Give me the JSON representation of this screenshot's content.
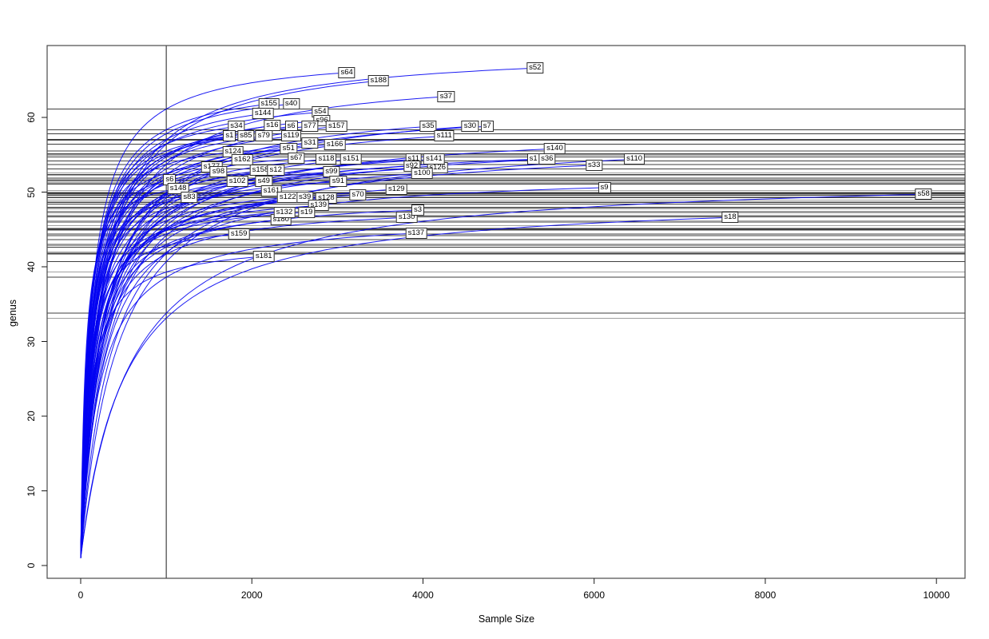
{
  "chart_data": {
    "type": "line",
    "title": "",
    "xlabel": "Sample Size",
    "ylabel": "genus",
    "xlim": [
      -380,
      10320
    ],
    "ylim": [
      -2,
      69.5
    ],
    "x_ticks": [
      0,
      2000,
      4000,
      6000,
      8000,
      10000
    ],
    "y_ticks": [
      0,
      10,
      20,
      30,
      40,
      50,
      60
    ],
    "grid": false,
    "legend": "none",
    "subsample_line_x": 1000,
    "description": "Rarefaction curves per sample; each blue curve ends at its sample label; horizontal lines mark rarefied genus richness at sample size 1000; vertical line at sample size 1000.",
    "colors": {
      "curve": "#0202f2",
      "hline": "#3f3f3f",
      "vline": "#1a1a1a",
      "box": "#4a4a4a",
      "tick": "#1a1a1a",
      "label_border": "#2b2b2b",
      "label_bg": "#ffffff"
    },
    "samples": [
      {
        "label": "s64",
        "x": 3110,
        "y": 66.0
      },
      {
        "label": "s188",
        "x": 3480,
        "y": 64.9
      },
      {
        "label": "s52",
        "x": 5310,
        "y": 66.6
      },
      {
        "label": "s37",
        "x": 4270,
        "y": 62.8
      },
      {
        "label": "s40",
        "x": 2460,
        "y": 61.8
      },
      {
        "label": "s155",
        "x": 2200,
        "y": 61.8
      },
      {
        "label": "s144",
        "x": 2130,
        "y": 60.5
      },
      {
        "label": "s54",
        "x": 2800,
        "y": 60.7
      },
      {
        "label": "s96",
        "x": 2820,
        "y": 59.6
      },
      {
        "label": "s34",
        "x": 1820,
        "y": 58.8
      },
      {
        "label": "s16",
        "x": 2240,
        "y": 58.9
      },
      {
        "label": "s6",
        "x": 2460,
        "y": 58.8
      },
      {
        "label": "s77",
        "x": 2680,
        "y": 58.8
      },
      {
        "label": "s157",
        "x": 2990,
        "y": 58.8
      },
      {
        "label": "s35",
        "x": 4060,
        "y": 58.8
      },
      {
        "label": "s7",
        "x": 4750,
        "y": 58.8
      },
      {
        "label": "s30",
        "x": 4550,
        "y": 58.8
      },
      {
        "label": "s1",
        "x": 1740,
        "y": 57.5
      },
      {
        "label": "s79",
        "x": 2140,
        "y": 57.5
      },
      {
        "label": "s85",
        "x": 1930,
        "y": 57.5
      },
      {
        "label": "s119",
        "x": 2460,
        "y": 57.5
      },
      {
        "label": "s111",
        "x": 4250,
        "y": 57.5
      },
      {
        "label": "s31",
        "x": 2680,
        "y": 56.6
      },
      {
        "label": "s166",
        "x": 2970,
        "y": 56.4
      },
      {
        "label": "s124",
        "x": 1780,
        "y": 55.4
      },
      {
        "label": "s51",
        "x": 2430,
        "y": 55.8
      },
      {
        "label": "s140",
        "x": 5540,
        "y": 55.8
      },
      {
        "label": "s162",
        "x": 1890,
        "y": 54.3
      },
      {
        "label": "s67",
        "x": 2520,
        "y": 54.5
      },
      {
        "label": "s118",
        "x": 2870,
        "y": 54.4
      },
      {
        "label": "s151",
        "x": 3160,
        "y": 54.4
      },
      {
        "label": "s11",
        "x": 3890,
        "y": 54.4
      },
      {
        "label": "s126",
        "x": 4170,
        "y": 53.3
      },
      {
        "label": "s141",
        "x": 4130,
        "y": 54.4
      },
      {
        "label": "s1",
        "x": 5290,
        "y": 54.4
      },
      {
        "label": "s36",
        "x": 5450,
        "y": 54.4
      },
      {
        "label": "s110",
        "x": 6470,
        "y": 54.4
      },
      {
        "label": "s177",
        "x": 1530,
        "y": 53.4
      },
      {
        "label": "s92",
        "x": 3870,
        "y": 53.5
      },
      {
        "label": "s33",
        "x": 6000,
        "y": 53.6
      },
      {
        "label": "s98",
        "x": 1610,
        "y": 52.7
      },
      {
        "label": "s158",
        "x": 2100,
        "y": 52.9
      },
      {
        "label": "s12",
        "x": 2280,
        "y": 52.9
      },
      {
        "label": "s99",
        "x": 2930,
        "y": 52.7
      },
      {
        "label": "s100",
        "x": 3990,
        "y": 52.5
      },
      {
        "label": "s6",
        "x": 1040,
        "y": 51.7
      },
      {
        "label": "s49",
        "x": 2140,
        "y": 51.4
      },
      {
        "label": "s102",
        "x": 1830,
        "y": 51.4
      },
      {
        "label": "s91",
        "x": 3010,
        "y": 51.4
      },
      {
        "label": "s9",
        "x": 6120,
        "y": 50.6
      },
      {
        "label": "s148",
        "x": 1140,
        "y": 50.5
      },
      {
        "label": "s161",
        "x": 2230,
        "y": 50.2
      },
      {
        "label": "s129",
        "x": 3690,
        "y": 50.4
      },
      {
        "label": "s83",
        "x": 1270,
        "y": 49.3
      },
      {
        "label": "s122",
        "x": 2420,
        "y": 49.3
      },
      {
        "label": "s39",
        "x": 2620,
        "y": 49.3
      },
      {
        "label": "s128",
        "x": 2870,
        "y": 49.2
      },
      {
        "label": "s70",
        "x": 3240,
        "y": 49.6
      },
      {
        "label": "s58",
        "x": 9850,
        "y": 49.7,
        "k": 0.058
      },
      {
        "label": "s139",
        "x": 2780,
        "y": 48.2
      },
      {
        "label": "s130",
        "x": 3810,
        "y": 46.6
      },
      {
        "label": "s3",
        "x": 3940,
        "y": 47.6
      },
      {
        "label": "s180",
        "x": 2340,
        "y": 46.3
      },
      {
        "label": "s132",
        "x": 2380,
        "y": 47.3
      },
      {
        "label": "s19",
        "x": 2640,
        "y": 47.3
      },
      {
        "label": "s18",
        "x": 7590,
        "y": 46.6,
        "k": 0.068
      },
      {
        "label": "s137",
        "x": 3920,
        "y": 44.5
      },
      {
        "label": "s159",
        "x": 1850,
        "y": 44.4
      },
      {
        "label": "s181",
        "x": 2140,
        "y": 41.4
      }
    ]
  }
}
